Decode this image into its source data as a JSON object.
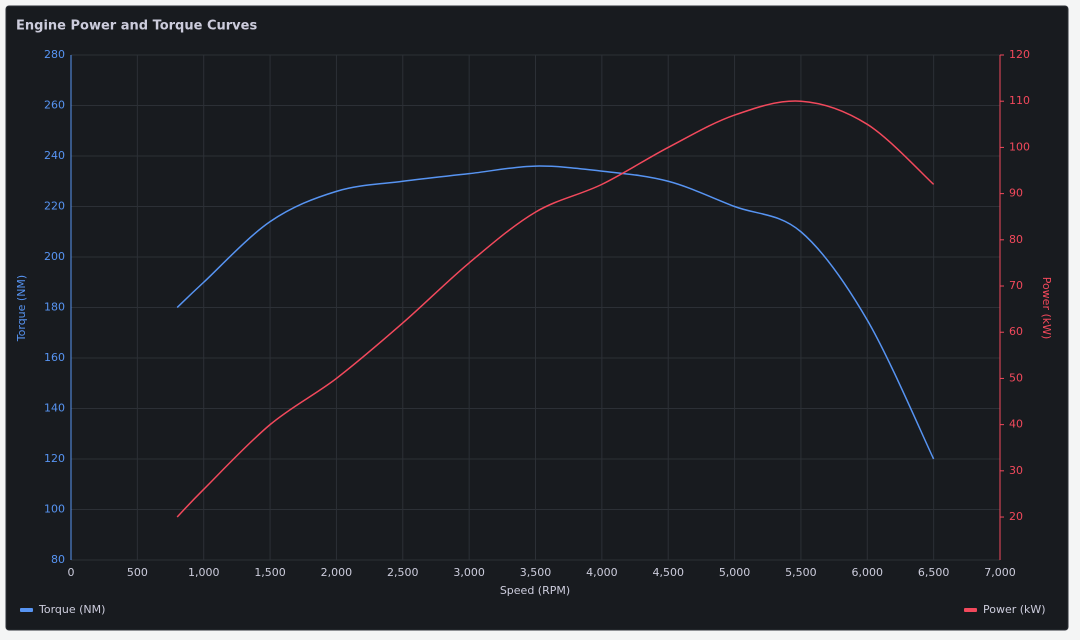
{
  "chart_data": {
    "type": "line",
    "title": "Engine Power and Torque Curves",
    "x_label": "Speed (RPM)",
    "y_label": "Torque (NM)",
    "y2_label": "Power (kW)",
    "x": [
      800,
      1000,
      1500,
      2000,
      2500,
      3000,
      3500,
      4000,
      4500,
      5000,
      5500,
      6000,
      6500
    ],
    "series": [
      {
        "name": "Torque (NM)",
        "color": "#5794f2",
        "values": [
          180,
          190,
          214,
          226,
          230,
          233,
          236,
          234,
          230,
          220,
          210,
          175,
          120
        ]
      },
      {
        "name": "Power (kW)",
        "color": "#f2495c",
        "axis": "y2",
        "values": [
          20,
          26,
          40,
          50,
          62,
          75,
          86,
          92,
          100,
          107,
          110,
          105,
          92
        ]
      }
    ],
    "xlim": [
      0,
      7000
    ],
    "xticks": [
      0,
      500,
      {
        "value": 1000,
        "label": "1,000"
      },
      {
        "value": 1500,
        "label": "1,500"
      },
      {
        "value": 2000,
        "label": "2,000"
      },
      {
        "value": 2500,
        "label": "2,500"
      },
      {
        "value": 3000,
        "label": "3,000"
      },
      {
        "value": 3500,
        "label": "3,500"
      },
      {
        "value": 4000,
        "label": "4,000"
      },
      {
        "value": 4500,
        "label": "4,500"
      },
      {
        "value": 5000,
        "label": "5,000"
      },
      {
        "value": 5500,
        "label": "5,500"
      },
      {
        "value": 6000,
        "label": "6,000"
      },
      {
        "value": 6500,
        "label": "6,500"
      },
      {
        "value": 7000,
        "label": "7,000"
      }
    ],
    "ylim": [
      80,
      280
    ],
    "yticks": [
      80,
      100,
      120,
      140,
      160,
      180,
      200,
      220,
      240,
      260,
      280
    ],
    "y2lim": [
      10.7,
      120
    ],
    "y2ticks": [
      20,
      30,
      40,
      50,
      60,
      70,
      80,
      90,
      100,
      110,
      120
    ],
    "grid": true
  }
}
